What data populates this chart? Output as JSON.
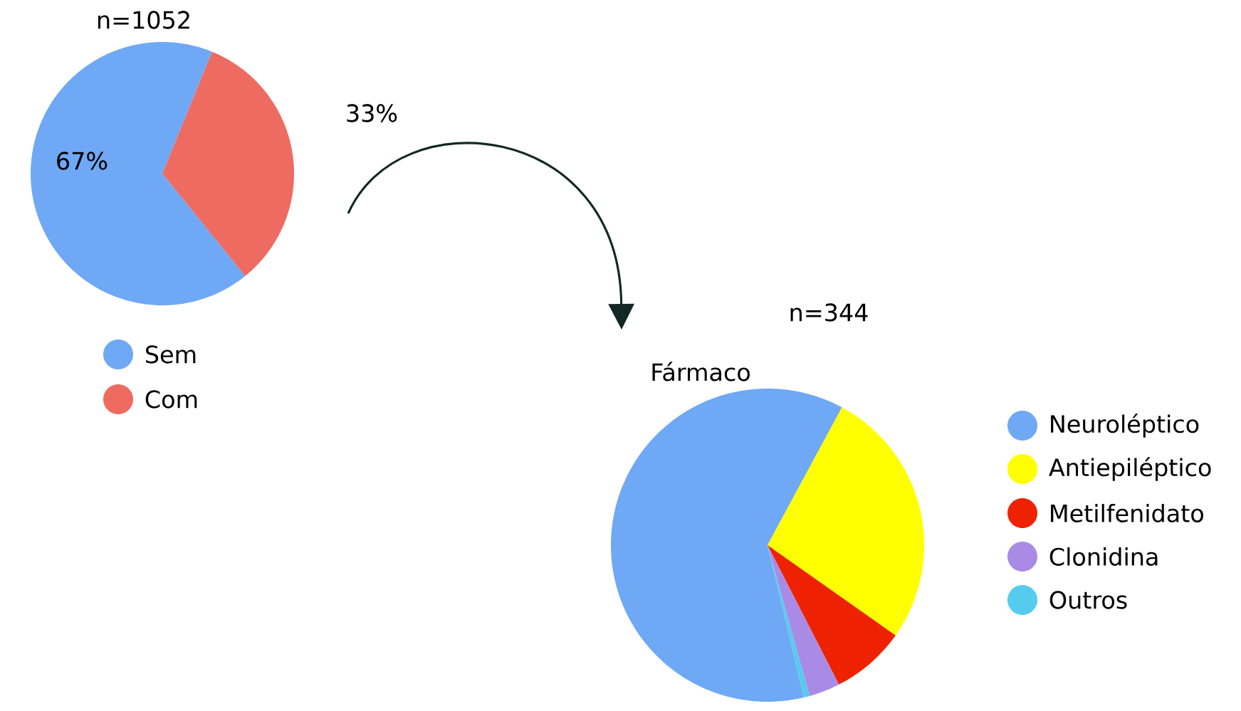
{
  "chart_data": [
    {
      "type": "pie",
      "title": "n=1052",
      "categories": [
        "Sem",
        "Com"
      ],
      "values": [
        67,
        33
      ],
      "colors": [
        "#6fa8f5",
        "#ee6b61"
      ],
      "value_labels": [
        "67%",
        "33%"
      ],
      "legend": "bottom"
    },
    {
      "type": "pie",
      "title": "n=344",
      "subtitle": "Fármaco",
      "categories": [
        "Neuroléptico",
        "Antiepiléptico",
        "Metilfenidato",
        "Clonidina",
        "Outros"
      ],
      "values": [
        61.6,
        26.9,
        7.7,
        3.2,
        0.6
      ],
      "colors": [
        "#6fa8f5",
        "#ffff00",
        "#ee2200",
        "#a98be6",
        "#55ccee"
      ],
      "legend": "right"
    }
  ]
}
